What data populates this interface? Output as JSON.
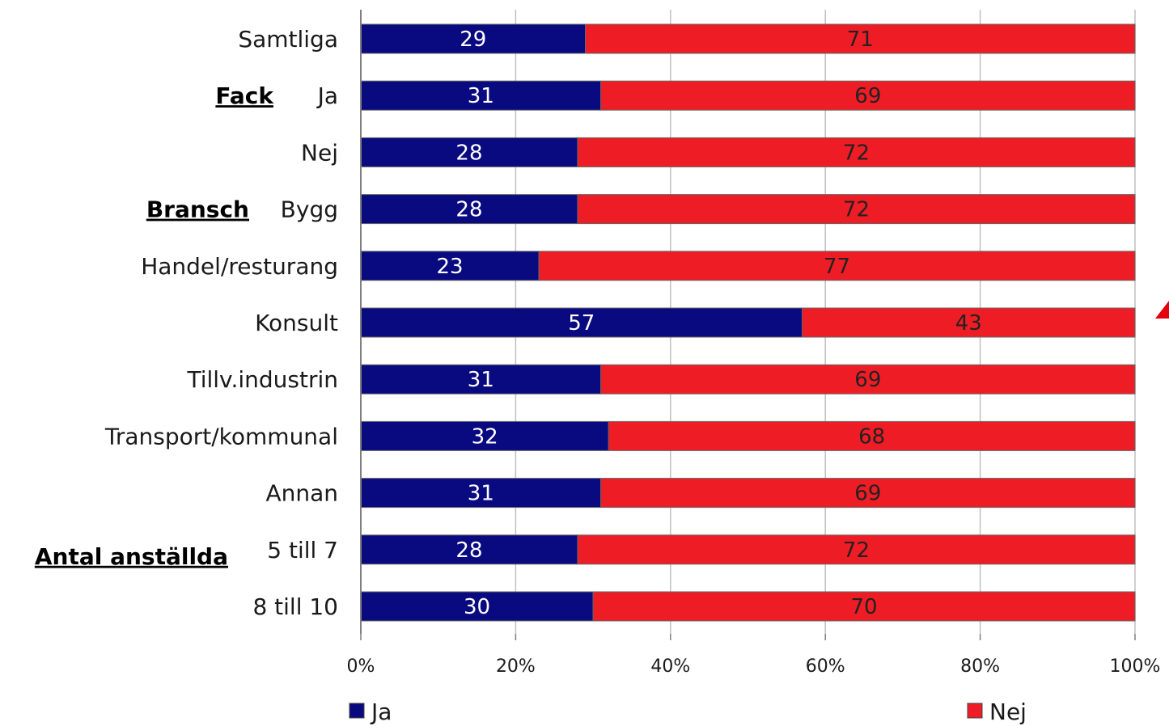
{
  "colors": {
    "ja": "#0a0a80",
    "nej": "#ee1c25",
    "grid": "#c0c0c0",
    "axis": "#7f7f7f",
    "accent": "#e3000f"
  },
  "chart_data": {
    "type": "bar",
    "orientation": "horizontal",
    "stacked": "percent",
    "categories": [
      "Samtliga",
      "Ja",
      "Nej",
      "Bygg",
      "Handel/resturang",
      "Konsult",
      "Tillv.industrin",
      "Transport/kommunal",
      "Annan",
      "5 till 7",
      "8 till 10"
    ],
    "groups": [
      {
        "label": "Fack",
        "category_index": 1
      },
      {
        "label": "Bransch",
        "category_index": 3
      },
      {
        "label": "Antal anställda",
        "category_index": 9
      }
    ],
    "series": [
      {
        "name": "Ja",
        "values": [
          29,
          31,
          28,
          28,
          23,
          57,
          31,
          32,
          31,
          28,
          30
        ]
      },
      {
        "name": "Nej",
        "values": [
          71,
          69,
          72,
          72,
          77,
          43,
          69,
          68,
          69,
          72,
          70
        ]
      }
    ],
    "x_ticks": [
      "0%",
      "20%",
      "40%",
      "60%",
      "80%",
      "100%"
    ],
    "xlim": [
      0,
      100
    ],
    "grid": true,
    "legend": "bottom"
  }
}
